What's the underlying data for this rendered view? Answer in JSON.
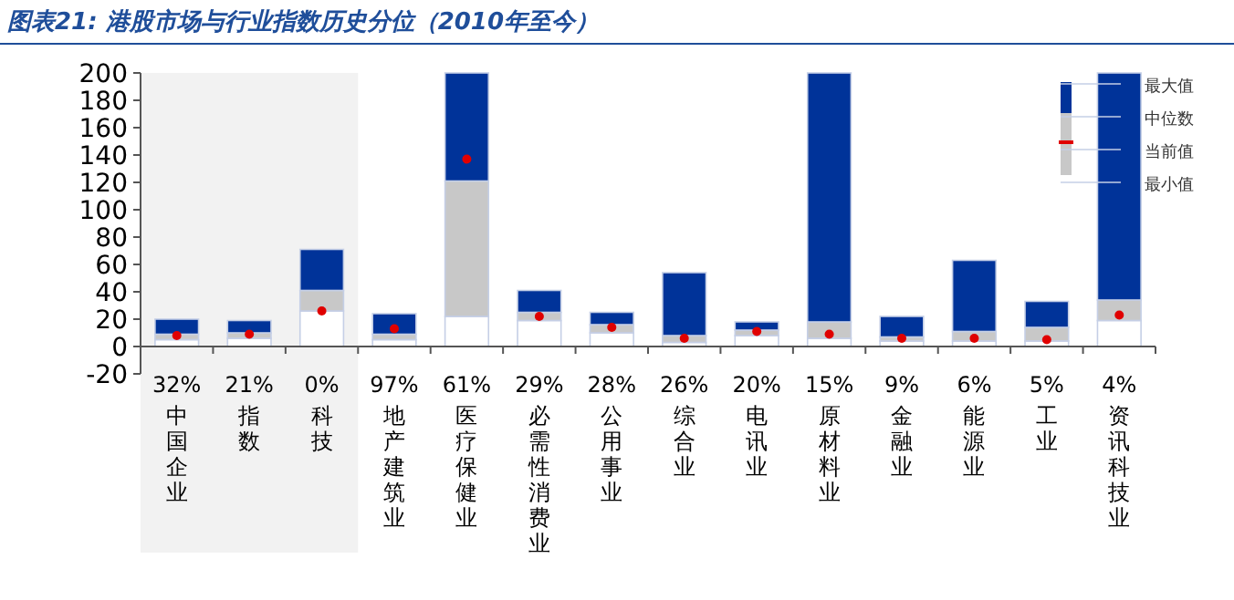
{
  "chart_data": {
    "type": "bar",
    "stacked": true,
    "title": "图表21: 港股市场与行业指数历史分位（2010年至今）",
    "categories": [
      "中国企业",
      "指数",
      "科技",
      "地产建筑业",
      "医疗保健业",
      "必需性消费业",
      "公用事业",
      "综合业",
      "电讯业",
      "原材料业",
      "金融业",
      "能源业",
      "工业",
      "资讯科技业"
    ],
    "series": [
      {
        "color": "#ffffff",
        "values": [
          5,
          6,
          26,
          5,
          22,
          19,
          10,
          3,
          8,
          6,
          4,
          4,
          4,
          19
        ]
      },
      {
        "color": "#c8c8c8",
        "values": [
          4,
          4,
          15,
          4,
          99,
          6,
          6,
          5,
          4,
          12,
          3,
          7,
          10,
          15
        ]
      },
      {
        "color": "#003399",
        "values": [
          11,
          9,
          30,
          15,
          79,
          16,
          9,
          46,
          6,
          182,
          15,
          52,
          19,
          166
        ]
      },
      {
        "type": "scatter",
        "color": "#e00000",
        "x": [
          "中国企业",
          "指数",
          "科技",
          "地产建筑业",
          "医疗保健业",
          "必需性消费业",
          "公用事业",
          "综合业",
          "电讯业",
          "原材料业",
          "金融业",
          "能源业",
          "工业",
          "资讯科技业"
        ],
        "values": [
          8,
          9,
          26,
          13,
          137,
          22,
          14,
          6,
          11,
          9,
          6,
          6,
          5,
          23
        ]
      }
    ],
    "ylim": [
      -20,
      200
    ],
    "yticks": [
      -20,
      0,
      20,
      40,
      60,
      80,
      100,
      120,
      140,
      160,
      180,
      200
    ],
    "annotations": [
      "最大值",
      "中位数",
      "当前值",
      "最小值",
      "32%",
      "21%",
      "0%",
      "97%",
      "61%",
      "29%",
      "28%",
      "26%",
      "20%",
      "15%",
      "9%",
      "6%",
      "5%",
      "4%"
    ]
  }
}
